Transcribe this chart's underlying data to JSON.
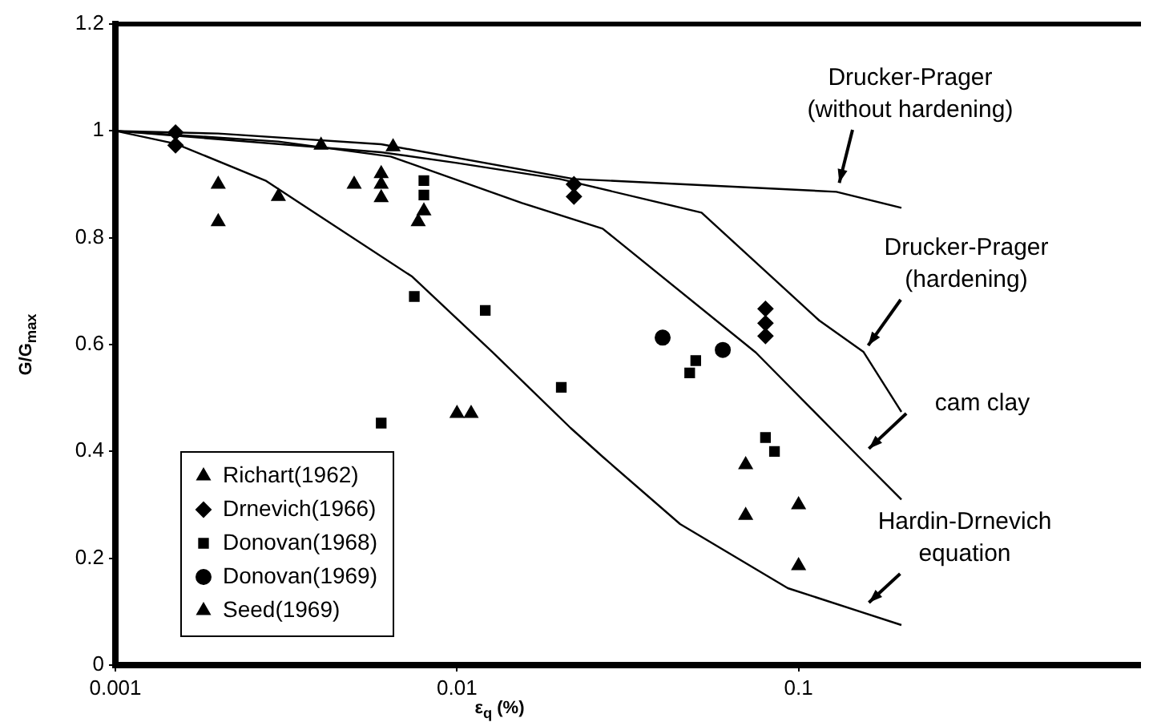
{
  "chart_data": {
    "type": "scatter",
    "xlabel": "ε$_{q}$ (%)",
    "ylabel": "G/G$_{max}$",
    "log": "x",
    "xlim": [
      0.001,
      1
    ],
    "xticks": [
      0.001,
      0.01,
      0.1
    ],
    "ylim": [
      0,
      1.2
    ],
    "yticks": [
      0,
      0.2,
      0.4,
      0.6,
      0.8,
      1,
      1.2
    ],
    "legend": "bottom left",
    "series": [
      {
        "type": "line",
        "color": "#000000",
        "marker": "none",
        "x": [
          0.001,
          0.002,
          0.006,
          0.022,
          0.129,
          0.2
        ],
        "values": [
          1,
          0.995,
          0.975,
          0.91,
          0.886,
          0.856
        ]
      },
      {
        "type": "line",
        "color": "#000000",
        "marker": "none",
        "x": [
          0.001,
          0.006,
          0.01,
          0.02,
          0.052,
          0.069,
          0.115,
          0.155,
          0.2
        ],
        "values": [
          1,
          0.96,
          0.94,
          0.91,
          0.847,
          0.775,
          0.645,
          0.586,
          0.474
        ]
      },
      {
        "type": "line",
        "color": "#000000",
        "marker": "none",
        "x": [
          0.001,
          0.003,
          0.0064,
          0.0155,
          0.0267,
          0.075,
          0.15,
          0.2
        ],
        "values": [
          1,
          0.98,
          0.952,
          0.865,
          0.817,
          0.585,
          0.39,
          0.31
        ]
      },
      {
        "type": "line",
        "color": "#000000",
        "marker": "none",
        "x": [
          0.001,
          0.0015,
          0.00275,
          0.0074,
          0.0127,
          0.0215,
          0.0267,
          0.045,
          0.093,
          0.2
        ],
        "values": [
          1,
          0.976,
          0.907,
          0.727,
          0.586,
          0.444,
          0.39,
          0.264,
          0.144,
          0.075
        ]
      },
      {
        "name": "Richart(1962)",
        "color": "#000000",
        "marker": "triangle",
        "x": [
          0.002,
          0.002,
          0.003,
          0.004,
          0.005,
          0.006,
          0.006,
          0.006,
          0.0065,
          0.0077,
          0.008
        ],
        "values": [
          0.9,
          0.83,
          0.877,
          0.973,
          0.9,
          0.92,
          0.9,
          0.875,
          0.97,
          0.83,
          0.85
        ]
      },
      {
        "name": "Drnevich(1966)",
        "color": "#000000",
        "marker": "diamond",
        "x": [
          0.0015,
          0.0015,
          0.022,
          0.022,
          0.08,
          0.08,
          0.08
        ],
        "values": [
          0.997,
          0.973,
          0.9,
          0.877,
          0.667,
          0.64,
          0.616
        ]
      },
      {
        "name": "Donovan(1968)",
        "color": "#000000",
        "marker": "square",
        "x": [
          0.008,
          0.008,
          0.0075,
          0.0121,
          0.006,
          0.0202,
          0.05,
          0.048,
          0.08,
          0.085
        ],
        "values": [
          0.907,
          0.88,
          0.69,
          0.664,
          0.453,
          0.52,
          0.57,
          0.547,
          0.426,
          0.4
        ]
      },
      {
        "name": "Donovan(1969)",
        "color": "#000000",
        "marker": "circle",
        "x": [
          0.04,
          0.06
        ],
        "values": [
          0.613,
          0.59
        ]
      },
      {
        "name": "Seed(1969)",
        "color": "#000000",
        "marker": "triangle",
        "x": [
          0.01,
          0.011,
          0.07,
          0.07,
          0.1,
          0.1
        ],
        "values": [
          0.471,
          0.471,
          0.375,
          0.28,
          0.3,
          0.186
        ]
      }
    ],
    "annotations": [
      "Drucker-Prager\n(without hardening)",
      "Drucker-Prager\n(hardening)",
      "cam clay",
      "Hardin-Drnevich\nequation"
    ]
  }
}
